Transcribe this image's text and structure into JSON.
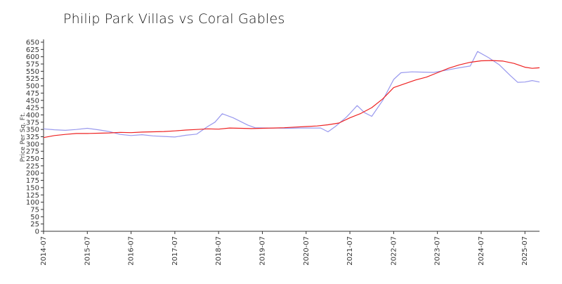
{
  "chart_data": {
    "type": "line",
    "title": "Philip Park Villas vs Coral Gables",
    "xlabel": "",
    "ylabel": "Price Per Sq. Ft.",
    "ylim": [
      0,
      650
    ],
    "yticks": [
      0,
      25,
      50,
      75,
      100,
      125,
      150,
      175,
      200,
      225,
      250,
      275,
      300,
      325,
      350,
      375,
      400,
      425,
      450,
      475,
      500,
      525,
      550,
      575,
      600,
      625,
      650
    ],
    "xlim": [
      "2014-07",
      "2025-11"
    ],
    "xticks": [
      "2014-07",
      "2015-07",
      "2016-07",
      "2017-07",
      "2018-07",
      "2019-07",
      "2020-07",
      "2021-07",
      "2022-07",
      "2023-07",
      "2024-07",
      "2025-07"
    ],
    "grid": false,
    "legend": "none",
    "series": [
      {
        "color": "#9999ee",
        "points": [
          [
            "2014-07",
            352
          ],
          [
            "2014-10",
            349
          ],
          [
            "2015-01",
            347
          ],
          [
            "2015-04",
            350
          ],
          [
            "2015-07",
            354
          ],
          [
            "2015-10",
            349
          ],
          [
            "2016-01",
            343
          ],
          [
            "2016-04",
            333
          ],
          [
            "2016-07",
            329
          ],
          [
            "2016-10",
            332
          ],
          [
            "2017-01",
            328
          ],
          [
            "2017-04",
            326
          ],
          [
            "2017-07",
            324
          ],
          [
            "2017-10",
            330
          ],
          [
            "2018-01",
            334
          ],
          [
            "2018-04",
            360
          ],
          [
            "2018-06",
            375
          ],
          [
            "2018-08",
            404
          ],
          [
            "2018-11",
            390
          ],
          [
            "2019-03",
            365
          ],
          [
            "2019-05",
            356
          ],
          [
            "2019-08",
            355
          ],
          [
            "2019-11",
            355
          ],
          [
            "2020-02",
            354
          ],
          [
            "2020-05",
            355
          ],
          [
            "2020-09",
            355
          ],
          [
            "2020-11",
            355
          ],
          [
            "2021-01",
            342
          ],
          [
            "2021-03",
            360
          ],
          [
            "2021-06",
            392
          ],
          [
            "2021-07",
            405
          ],
          [
            "2021-09",
            432
          ],
          [
            "2021-11",
            408
          ],
          [
            "2022-01",
            395
          ],
          [
            "2022-04",
            450
          ],
          [
            "2022-07",
            522
          ],
          [
            "2022-09",
            545
          ],
          [
            "2022-12",
            548
          ],
          [
            "2023-03",
            547
          ],
          [
            "2023-06",
            546
          ],
          [
            "2023-10",
            555
          ],
          [
            "2024-01",
            562
          ],
          [
            "2024-04",
            568
          ],
          [
            "2024-06",
            618
          ],
          [
            "2024-09",
            597
          ],
          [
            "2024-12",
            572
          ],
          [
            "2025-03",
            535
          ],
          [
            "2025-05",
            512
          ],
          [
            "2025-07",
            513
          ],
          [
            "2025-09",
            518
          ],
          [
            "2025-11",
            513
          ]
        ]
      },
      {
        "color": "#ee2222",
        "points": [
          [
            "2014-07",
            322
          ],
          [
            "2014-10",
            329
          ],
          [
            "2015-01",
            333
          ],
          [
            "2015-04",
            336
          ],
          [
            "2015-07",
            336
          ],
          [
            "2015-10",
            337
          ],
          [
            "2016-01",
            338
          ],
          [
            "2016-04",
            340
          ],
          [
            "2016-07",
            339
          ],
          [
            "2016-10",
            341
          ],
          [
            "2017-01",
            342
          ],
          [
            "2017-04",
            343
          ],
          [
            "2017-07",
            345
          ],
          [
            "2017-10",
            348
          ],
          [
            "2018-01",
            350
          ],
          [
            "2018-04",
            352
          ],
          [
            "2018-07",
            351
          ],
          [
            "2018-10",
            355
          ],
          [
            "2019-01",
            354
          ],
          [
            "2019-04",
            353
          ],
          [
            "2019-07",
            354
          ],
          [
            "2019-10",
            355
          ],
          [
            "2020-01",
            356
          ],
          [
            "2020-04",
            358
          ],
          [
            "2020-07",
            360
          ],
          [
            "2020-10",
            362
          ],
          [
            "2021-01",
            366
          ],
          [
            "2021-04",
            372
          ],
          [
            "2021-07",
            390
          ],
          [
            "2021-10",
            405
          ],
          [
            "2022-01",
            425
          ],
          [
            "2022-04",
            455
          ],
          [
            "2022-07",
            494
          ],
          [
            "2022-10",
            507
          ],
          [
            "2023-01",
            520
          ],
          [
            "2023-04",
            530
          ],
          [
            "2023-07",
            545
          ],
          [
            "2023-10",
            560
          ],
          [
            "2024-01",
            572
          ],
          [
            "2024-04",
            581
          ],
          [
            "2024-07",
            586
          ],
          [
            "2024-10",
            587
          ],
          [
            "2025-01",
            585
          ],
          [
            "2025-04",
            577
          ],
          [
            "2025-07",
            564
          ],
          [
            "2025-09",
            560
          ],
          [
            "2025-11",
            562
          ]
        ]
      }
    ]
  }
}
